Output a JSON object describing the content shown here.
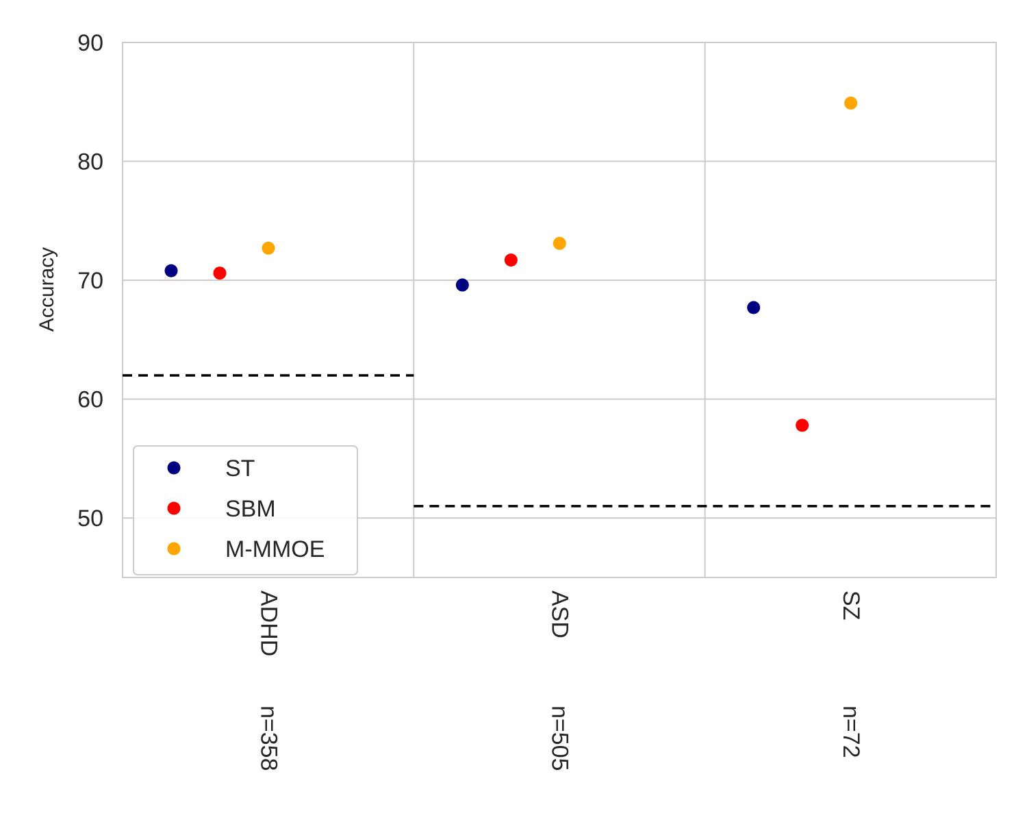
{
  "chart_data": {
    "type": "scatter",
    "categories": [
      "ADHD",
      "ASD",
      "SZ"
    ],
    "sample_sizes": [
      "n=358",
      "n=505",
      "n=72"
    ],
    "ylabel": "Accuracy",
    "xlabel": "",
    "ylim": [
      45,
      90
    ],
    "yticks": [
      50,
      60,
      70,
      80,
      90
    ],
    "grid": true,
    "legend_position": "lower-left",
    "series": [
      {
        "name": "ST",
        "color": "#000080",
        "values": [
          70.8,
          69.6,
          67.7
        ]
      },
      {
        "name": "SBM",
        "color": "#ff0000",
        "values": [
          70.6,
          71.7,
          57.8
        ]
      },
      {
        "name": "M-MMOE",
        "color": "#ffa500",
        "values": [
          72.7,
          73.1,
          84.9
        ]
      }
    ],
    "baselines": [
      {
        "category_span": [
          "ADHD"
        ],
        "value": 62.0,
        "style": "dashed",
        "color": "#000000"
      },
      {
        "category_span": [
          "ASD",
          "SZ"
        ],
        "value": 51.0,
        "style": "dashed",
        "color": "#000000"
      }
    ]
  }
}
